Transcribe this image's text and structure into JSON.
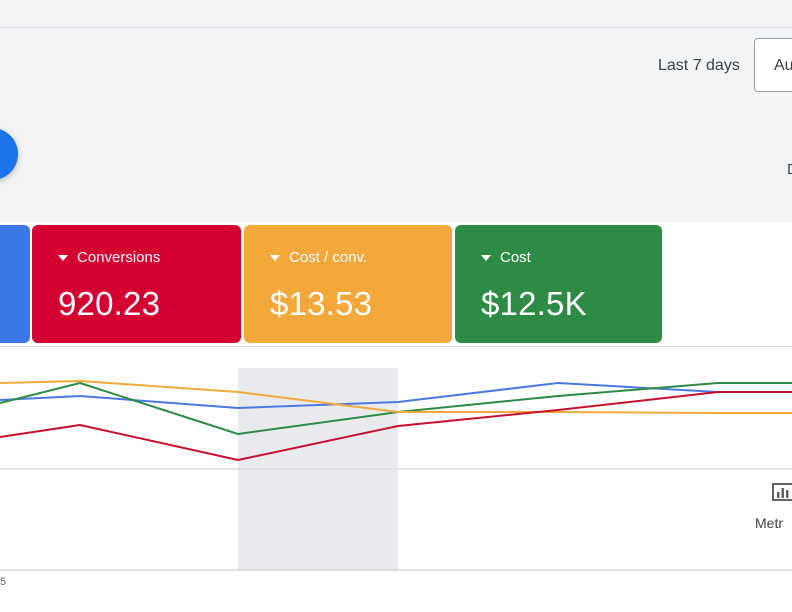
{
  "header": {
    "date_range_label": "Last 7 days",
    "auto_button_label": "Au",
    "edge_letter": "D"
  },
  "cards": [
    {
      "title": "",
      "value": "",
      "color": "#3b78e7"
    },
    {
      "title": "Conversions",
      "value": "920.23",
      "color": "#d50032"
    },
    {
      "title": "Cost / conv.",
      "value": "$13.53",
      "color": "#f2a83b"
    },
    {
      "title": "Cost",
      "value": "$12.5K",
      "color": "#2e8b45"
    }
  ],
  "metrics": {
    "label": "Metr",
    "icon": "bar-chart-icon"
  },
  "chart": {
    "bottom_label": "5"
  },
  "chart_data": {
    "type": "line",
    "x": [
      0,
      1,
      2,
      3,
      4,
      5
    ],
    "series": [
      {
        "color": "#4a79e3",
        "values": [
          0.68,
          0.72,
          0.6,
          0.66,
          0.85,
          0.76
        ]
      },
      {
        "color": "#2e8b45",
        "values": [
          0.65,
          0.85,
          0.34,
          0.56,
          0.72,
          0.85
        ]
      },
      {
        "color": "#f2a83b",
        "values": [
          0.85,
          0.87,
          0.76,
          0.56,
          0.56,
          0.55
        ]
      },
      {
        "color": "#c8102e",
        "values": [
          0.31,
          0.43,
          0.08,
          0.42,
          0.58,
          0.76
        ]
      }
    ],
    "highlighted_x": 2,
    "ylim": [
      0,
      1
    ],
    "grid": true
  }
}
